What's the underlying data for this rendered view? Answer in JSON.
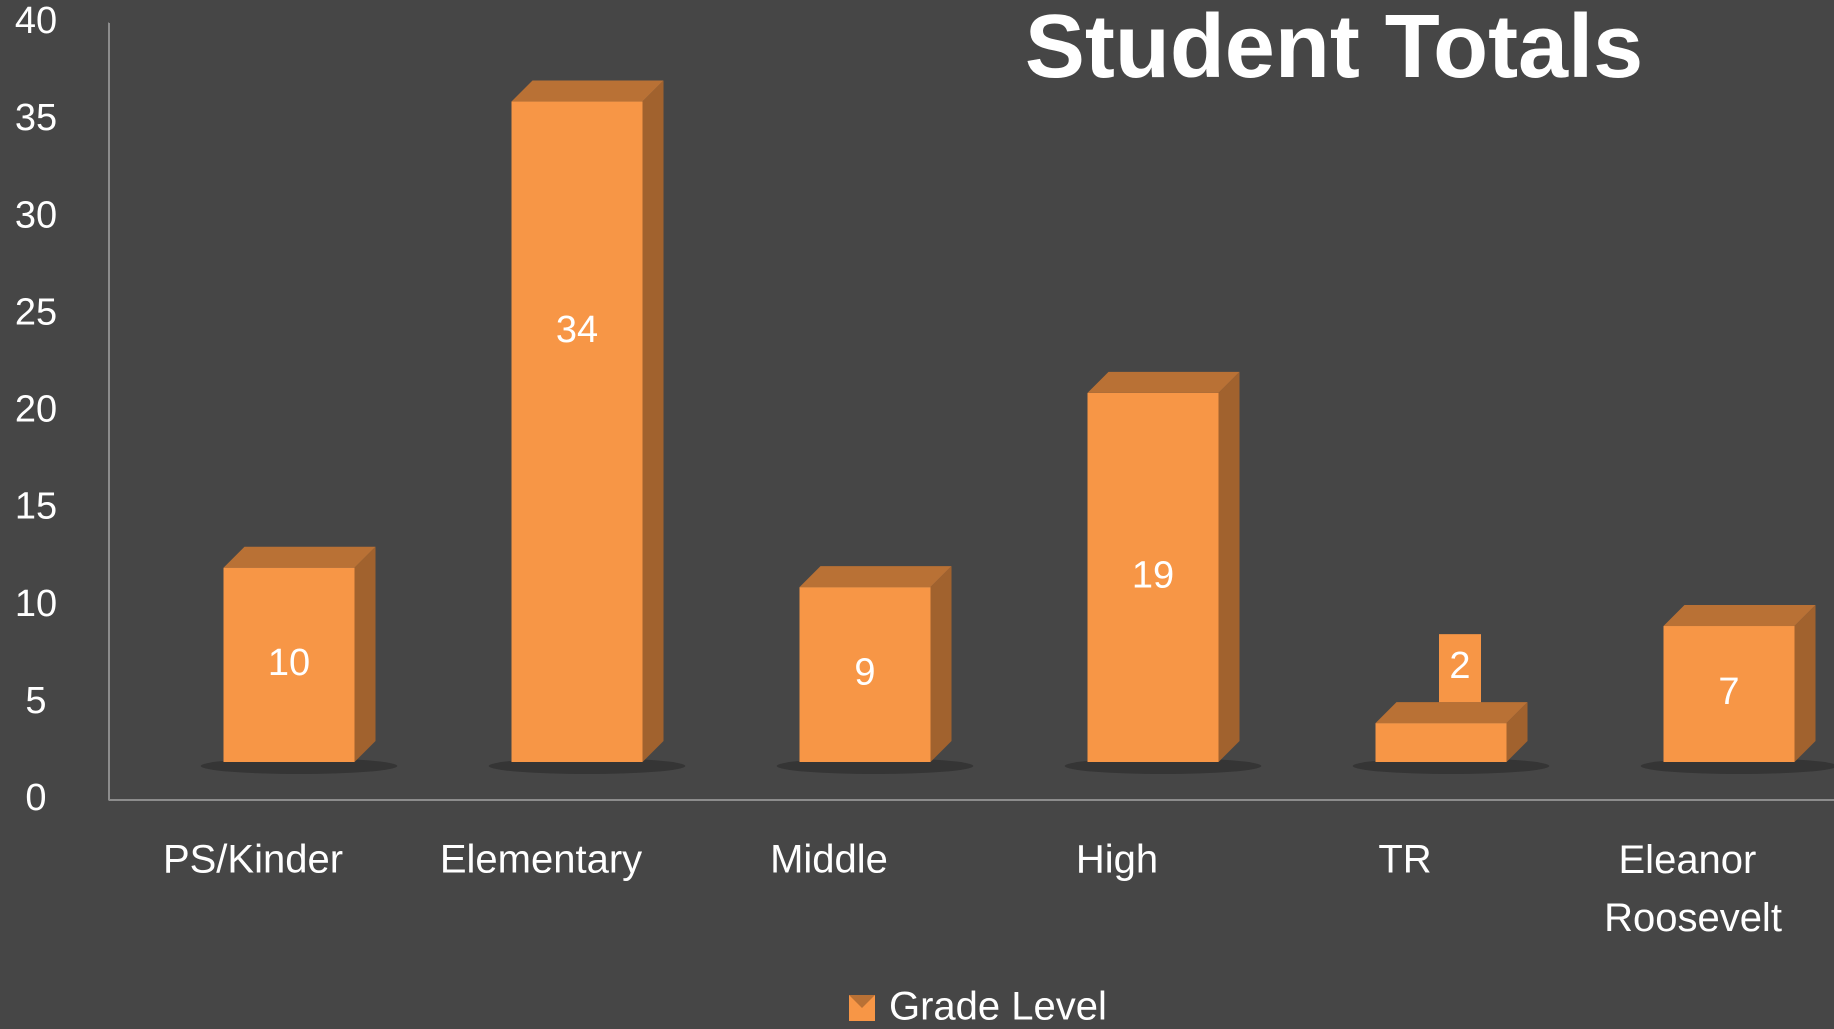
{
  "chart_data": {
    "type": "bar",
    "title": "Student Totals",
    "categories": [
      "PS/Kinder",
      "Elementary",
      "Middle",
      "High",
      "TR",
      "Eleanor Roosevelt"
    ],
    "series": [
      {
        "name": "Grade Level",
        "color": "#f79646",
        "values": [
          10,
          34,
          9,
          19,
          2,
          7
        ]
      }
    ],
    "ylim": [
      0,
      40
    ],
    "yticks": [
      0,
      5,
      10,
      15,
      20,
      25,
      30,
      35,
      40
    ],
    "grid": false,
    "legend": "bottom"
  }
}
